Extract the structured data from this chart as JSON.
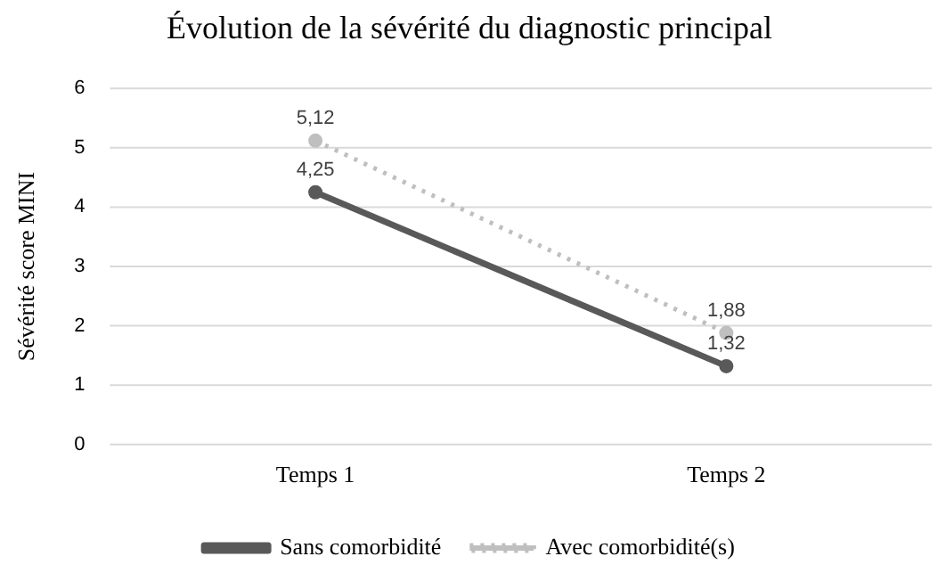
{
  "chart_data": {
    "type": "line",
    "title": "Évolution de la sévérité du diagnostic principal",
    "ylabel": "Sévérité score MINI",
    "categories": [
      "Temps 1",
      "Temps 2"
    ],
    "series": [
      {
        "name": "Sans comorbidité",
        "color": "#595959",
        "values": [
          4.25,
          1.32
        ],
        "value_labels": [
          "4,25",
          "1,32"
        ],
        "line_style": "solid"
      },
      {
        "name": "Avec comorbidité(s)",
        "color": "#bfbfbf",
        "values": [
          5.12,
          1.88
        ],
        "value_labels": [
          "5,12",
          "1,88"
        ],
        "line_style": "dotted"
      }
    ],
    "ylim": [
      0,
      6
    ],
    "yticks": [
      0,
      1,
      2,
      3,
      4,
      5,
      6
    ],
    "grid": "y",
    "legend": "bottom",
    "marker": "circle"
  }
}
